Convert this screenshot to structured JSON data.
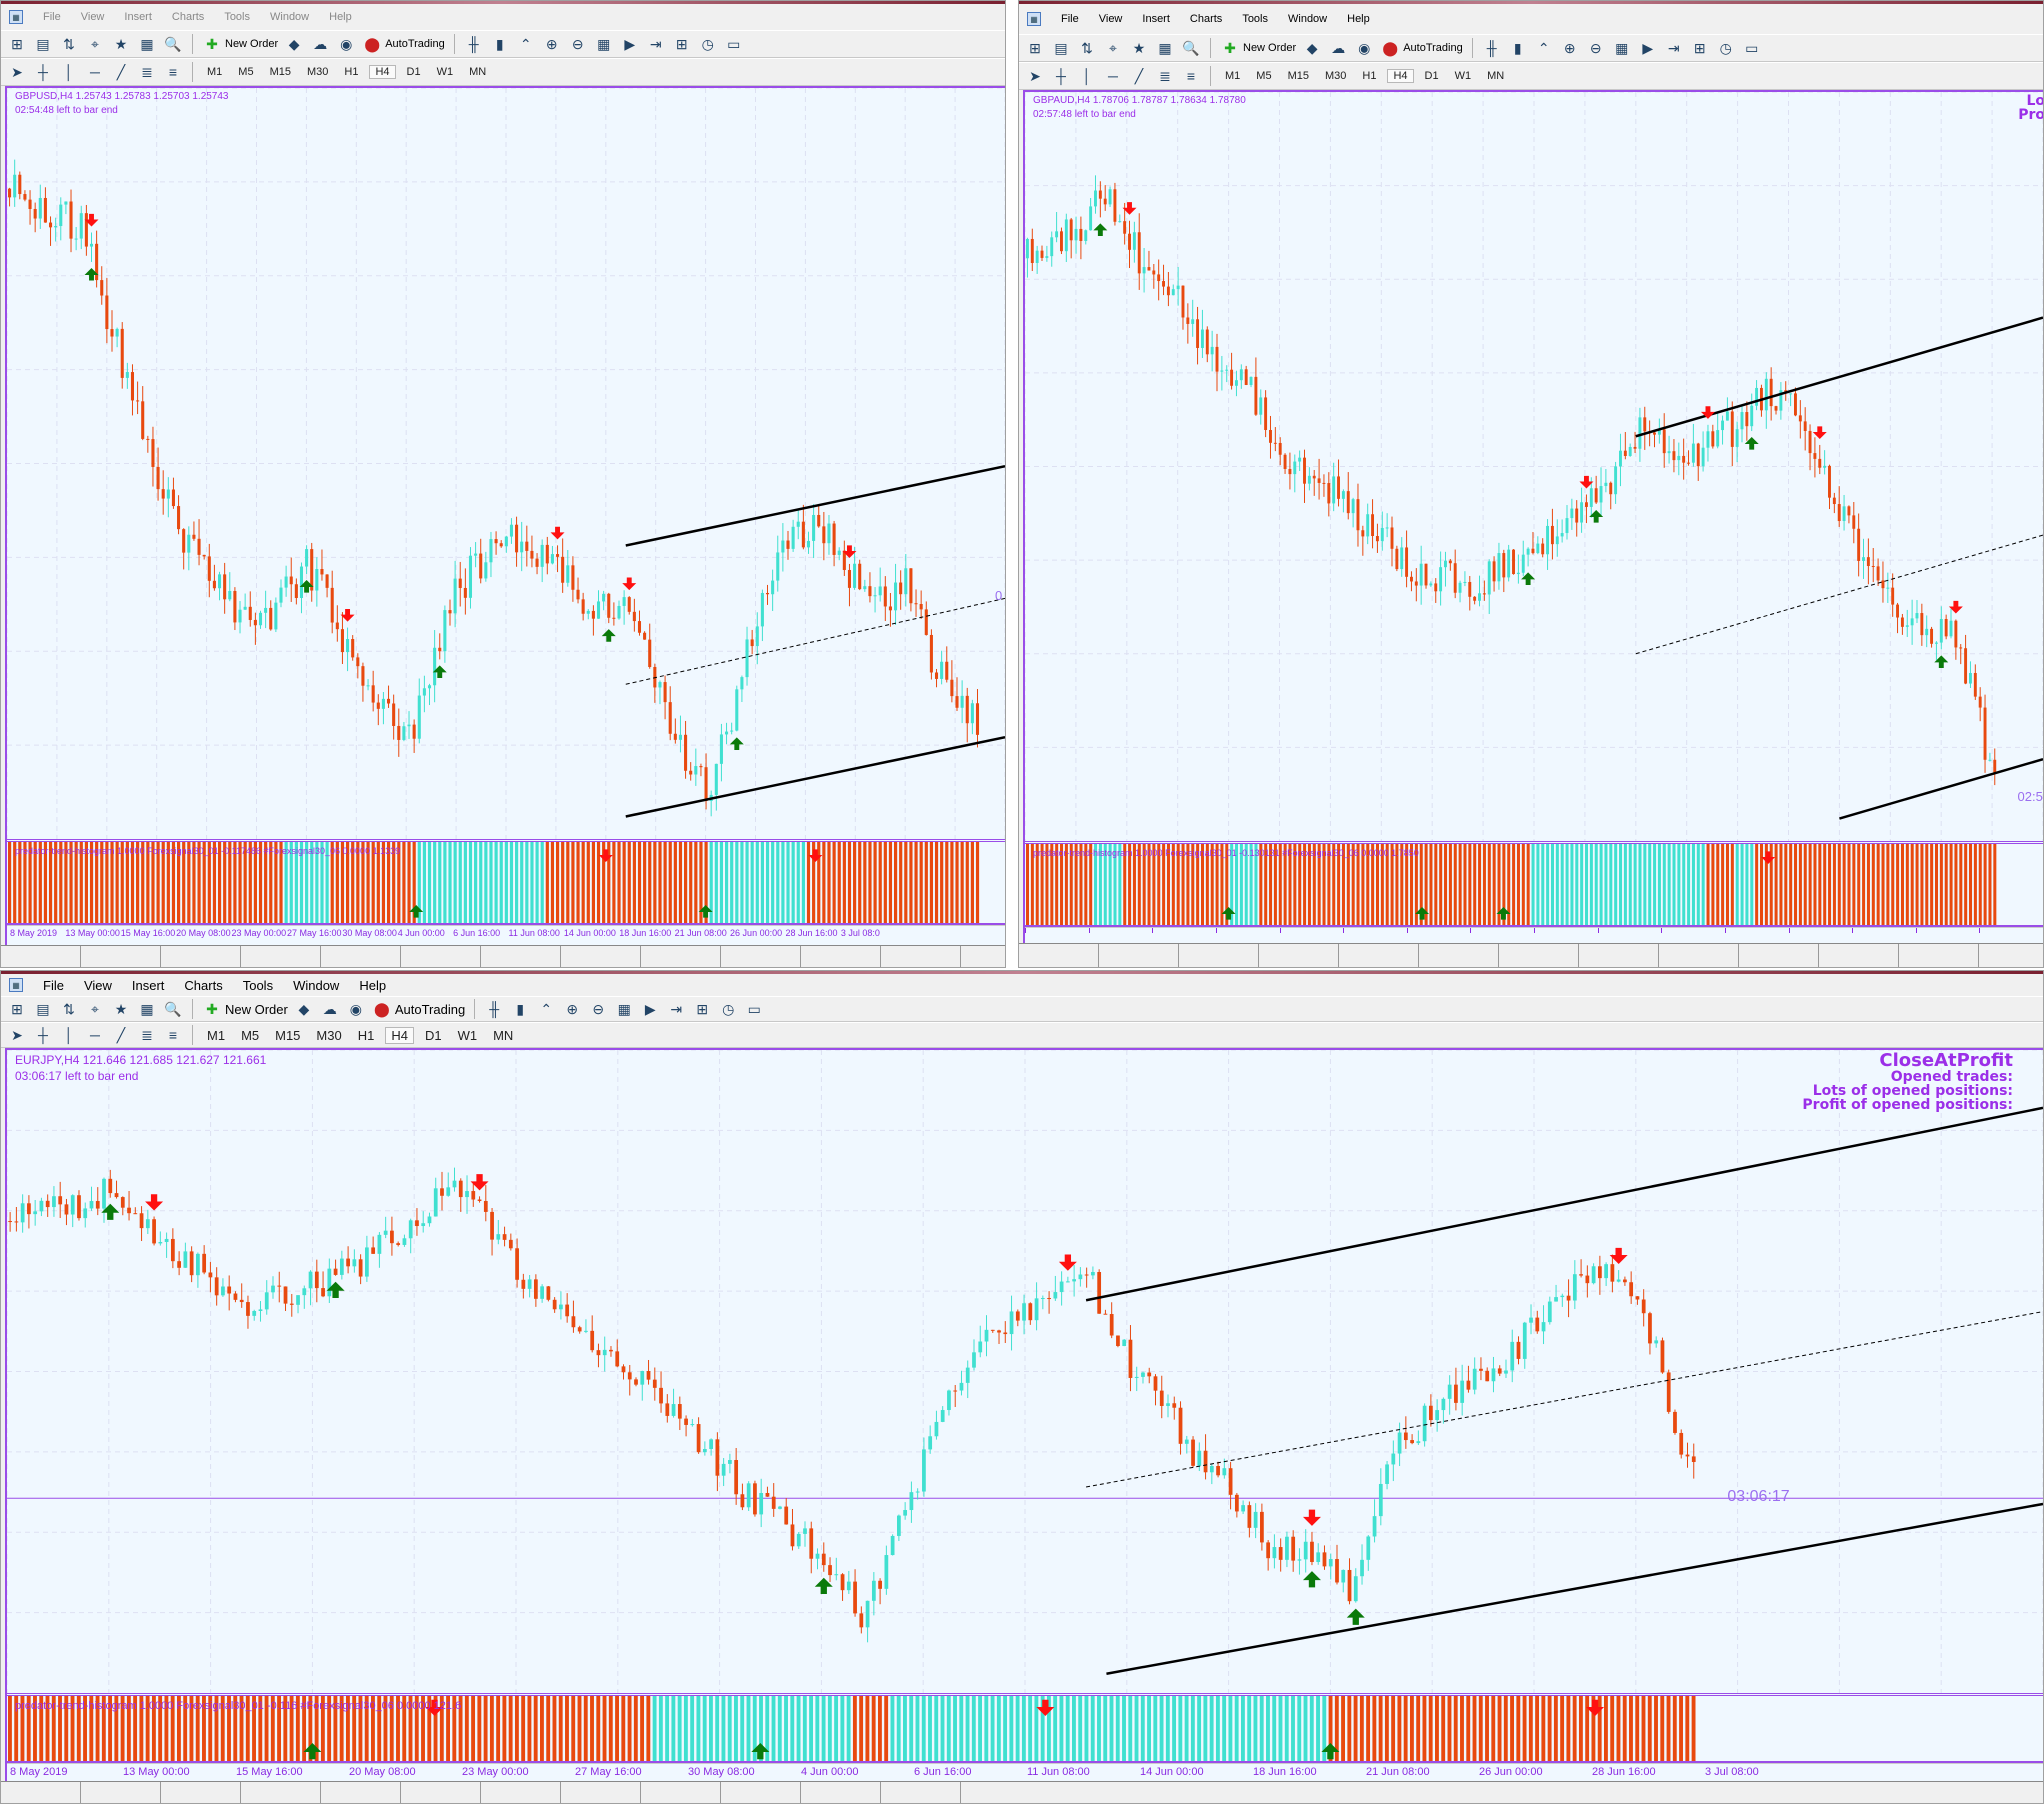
{
  "menu": [
    "File",
    "View",
    "Insert",
    "Charts",
    "Tools",
    "Window",
    "Help"
  ],
  "toolbar": {
    "new_order": "New Order",
    "autotrading": "AutoTrading"
  },
  "timeframes": [
    "M1",
    "M5",
    "M15",
    "M30",
    "H1",
    "H4",
    "D1",
    "W1",
    "MN"
  ],
  "active_timeframe": "H4",
  "colors": {
    "bull": "#40e0d0",
    "bear": "#e8490f",
    "up_arrow": "#0a7a0a",
    "down_arrow": "#ff1010",
    "text": "#9b2fe8",
    "chart_bg": "#f0f8ff"
  },
  "windows": [
    {
      "symbol_line": "GBPUSD,H4  1.25743 1.25783 1.25703 1.25743",
      "timer": "02:54:48 left to bar end",
      "indicator_label": "predator-trend-histogram 1.0000 Forexsignal30_01 -0.117486 #Forexsignal30_06 0.0000 1.1339",
      "price_tag": "0",
      "overlay": [],
      "axis_labels": [
        "8 May 2019",
        "13 May 00:00",
        "15 May 16:00",
        "20 May 08:00",
        "23 May 00:00",
        "27 May 16:00",
        "30 May 08:00",
        "4 Jun 00:00",
        "6 Jun 16:00",
        "11 Jun 08:00",
        "14 Jun 00:00",
        "18 Jun 16:00",
        "21 Jun 08:00",
        "26 Jun 00:00",
        "28 Jun 16:00",
        "3 Jul 08:0"
      ]
    },
    {
      "symbol_line": "GBPAUD,H4  1.78706 1.78787 1.78634 1.78780",
      "timer": "02:57:48 left to bar end",
      "indicator_label": "predator-trend-histogram 1.0000 Forexsignal30_01 -0.130131 #Forexsignal30_06 0.0000 1.7850",
      "price_tag": "02:5",
      "overlay": [
        "Lo",
        "Pro"
      ],
      "axis_labels": []
    },
    {
      "symbol_line": "EURJPY,H4  121.646 121.685 121.627 121.661",
      "timer": "03:06:17 left to bar end",
      "indicator_label": "predator-trend-histogram 1.0000 Forexsignal30_01 -0.116 #Forexsignal30_06 0.0000 121.6",
      "price_tag": "03:06:17",
      "overlay": [
        "CloseAtProfit",
        "Opened trades:",
        "Lots of opened positions:",
        "Profit of opened positions:"
      ],
      "axis_labels": [
        "8 May 2019",
        "13 May 00:00",
        "15 May 16:00",
        "20 May 08:00",
        "23 May 00:00",
        "27 May 16:00",
        "30 May 08:00",
        "4 Jun 00:00",
        "6 Jun 16:00",
        "11 Jun 08:00",
        "14 Jun 00:00",
        "18 Jun 16:00",
        "21 Jun 08:00",
        "26 Jun 00:00",
        "28 Jun 16:00",
        "3 Jul 08:00"
      ]
    }
  ]
}
